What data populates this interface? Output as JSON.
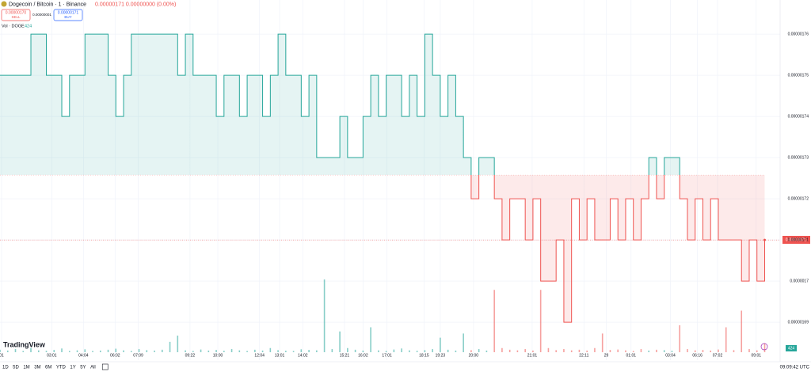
{
  "header": {
    "symbol": "Dogecoin / Bitcoin · 1 · Binance",
    "quote": "0.00000171 0.00000000 (0.00%)",
    "sell_price": "0.00000170",
    "sell_label": "SELL",
    "spread": "0.00000001",
    "buy_price": "0.00000171",
    "buy_label": "BUY",
    "volume_label": "Vol · DOGE",
    "volume_value": "424"
  },
  "logo": "TradingView",
  "last_price_label": "0.00000171",
  "volume_badge": "424",
  "toolbar": {
    "ranges": [
      "1D",
      "5D",
      "1M",
      "3M",
      "6M",
      "YTD",
      "1Y",
      "5Y",
      "All"
    ],
    "clock": "09:09:42 UTC"
  },
  "chart_data": {
    "type": "baseline",
    "values": [
      1.75e-06,
      1.75e-06,
      1.75e-06,
      1.75e-06,
      1.76e-06,
      1.76e-06,
      1.75e-06,
      1.75e-06,
      1.74e-06,
      1.75e-06,
      1.75e-06,
      1.76e-06,
      1.76e-06,
      1.76e-06,
      1.75e-06,
      1.74e-06,
      1.75e-06,
      1.76e-06,
      1.76e-06,
      1.76e-06,
      1.76e-06,
      1.76e-06,
      1.76e-06,
      1.75e-06,
      1.76e-06,
      1.75e-06,
      1.75e-06,
      1.75e-06,
      1.74e-06,
      1.75e-06,
      1.75e-06,
      1.74e-06,
      1.75e-06,
      1.75e-06,
      1.74e-06,
      1.75e-06,
      1.76e-06,
      1.75e-06,
      1.75e-06,
      1.74e-06,
      1.75e-06,
      1.73e-06,
      1.73e-06,
      1.73e-06,
      1.74e-06,
      1.73e-06,
      1.73e-06,
      1.74e-06,
      1.75e-06,
      1.74e-06,
      1.75e-06,
      1.75e-06,
      1.74e-06,
      1.75e-06,
      1.74e-06,
      1.76e-06,
      1.75e-06,
      1.74e-06,
      1.75e-06,
      1.74e-06,
      1.73e-06,
      1.72e-06,
      1.73e-06,
      1.73e-06,
      1.72e-06,
      1.71e-06,
      1.72e-06,
      1.72e-06,
      1.71e-06,
      1.72e-06,
      1.7e-06,
      1.7e-06,
      1.71e-06,
      1.69e-06,
      1.72e-06,
      1.71e-06,
      1.72e-06,
      1.71e-06,
      1.71e-06,
      1.72e-06,
      1.71e-06,
      1.72e-06,
      1.71e-06,
      1.72e-06,
      1.73e-06,
      1.72e-06,
      1.73e-06,
      1.73e-06,
      1.72e-06,
      1.71e-06,
      1.72e-06,
      1.71e-06,
      1.72e-06,
      1.71e-06,
      1.71e-06,
      1.71e-06,
      1.7e-06,
      1.71e-06,
      1.7e-06,
      1.71e-06
    ],
    "volume": [
      120,
      80,
      150,
      60,
      200,
      90,
      70,
      110,
      180,
      60,
      90,
      140,
      60,
      80,
      120,
      170,
      90,
      60,
      150,
      100,
      80,
      120,
      500,
      800,
      90,
      60,
      130,
      80,
      110,
      70,
      150,
      90,
      60,
      120,
      80,
      200,
      100,
      70,
      60,
      140,
      110,
      90,
      3500,
      150,
      1000,
      200,
      120,
      80,
      1200,
      90,
      60,
      130,
      180,
      90,
      70,
      100,
      150,
      700,
      120,
      80,
      900,
      100,
      150,
      80,
      3000,
      200,
      120,
      90,
      150,
      80,
      3000,
      200,
      100,
      150,
      90,
      120,
      80,
      200,
      900,
      110,
      130,
      90,
      60,
      150,
      80,
      120,
      100,
      70,
      1300,
      150,
      90,
      110,
      80,
      130,
      1200,
      100,
      2000,
      150,
      90,
      424
    ],
    "xlim": [
      0,
      101
    ],
    "ylim": [
      1.6808e-06,
      1.7683e-06
    ],
    "volume_lim": [
      0,
      4000
    ],
    "baseline": 1.72577e-06,
    "yticks": [
      1.76e-06,
      1.75e-06,
      1.74e-06,
      1.73e-06,
      1.72e-06,
      1.71e-06,
      1.7e-06,
      1.69e-06
    ],
    "xticks": [
      {
        "value": 0.2,
        "label": "01"
      },
      {
        "value": 6.7,
        "label": "03:01"
      },
      {
        "value": 10.8,
        "label": "04:04"
      },
      {
        "value": 14.9,
        "label": "06:02"
      },
      {
        "value": 17.9,
        "label": "07:09"
      },
      {
        "value": 24.6,
        "label": "09:22"
      },
      {
        "value": 28.2,
        "label": "10:00"
      },
      {
        "value": 33.6,
        "label": "12:04"
      },
      {
        "value": 36.2,
        "label": "13:01"
      },
      {
        "value": 39.2,
        "label": "14:02"
      },
      {
        "value": 44.6,
        "label": "15:21"
      },
      {
        "value": 47,
        "label": "16:02"
      },
      {
        "value": 50.1,
        "label": "17:01"
      },
      {
        "value": 54.9,
        "label": "18:15"
      },
      {
        "value": 57,
        "label": "19:23"
      },
      {
        "value": 61.3,
        "label": "20:00"
      },
      {
        "value": 68.9,
        "label": "21:01"
      },
      {
        "value": 75.6,
        "label": "22:11"
      },
      {
        "value": 78.5,
        "label": "29"
      },
      {
        "value": 81.7,
        "label": "01:01"
      },
      {
        "value": 86.8,
        "label": "03:04"
      },
      {
        "value": 90.3,
        "label": "06:16"
      },
      {
        "value": 92.9,
        "label": "07:02"
      },
      {
        "value": 97.9,
        "label": "09:01"
      }
    ],
    "up_color": "#26a69a",
    "down_color": "#ef5350",
    "grid": true
  }
}
